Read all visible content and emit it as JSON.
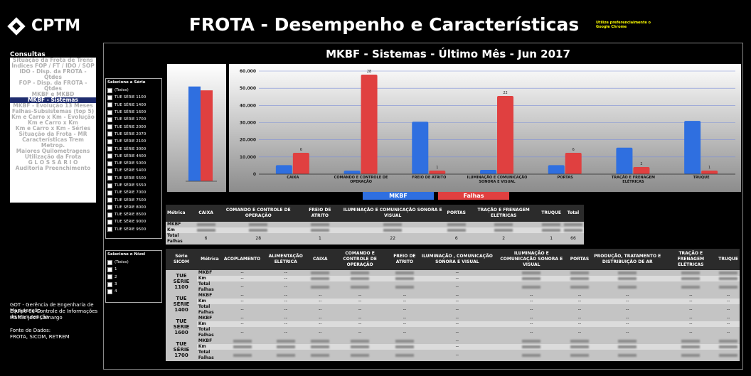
{
  "header": {
    "logo": "CPTM",
    "title": "FROTA - Desempenho e Características",
    "note": "Utilize preferencialmente o Google Chrome"
  },
  "menu": {
    "title": "Consultas",
    "selected": 5,
    "items": [
      "Situação da Frota de Trens",
      "Índices FOP / FT / IDO / SOP",
      "IDO - Disp. da FROTA - Qtdes",
      "FOP - Disp. da FROTA - Qtdes",
      "MKBF e MKBD",
      "MKBF - Sistemas",
      "MKBF - Evolução 13 Meses",
      "Falhas-Subsistemas (top 5)",
      "Km e Carro x Km - Evolução",
      "Km e Carro x Km",
      "Km e Carro x Km - Séries",
      "Situação da Frota - MR",
      "Características Trem Metrop.",
      "Maiores Quilometragens",
      "Utilização da Frota",
      "G L O S S Á R I O",
      "Auditoria Preenchimento"
    ]
  },
  "footer": [
    "GOT - Gerência de Engenharia de Manutenção",
    "Equipe de Controle de Informações da Manutenção",
    "Márcio José Camargo",
    "",
    "Fonte de Dados:",
    "FROTA, SICOM, RETREM"
  ],
  "subtitle": "MKBF - Sistemas - Último Mês -  Jun 2017",
  "series_filter": {
    "title": "Selecione a Série",
    "items": [
      "(Todos)",
      "TUE SÉRIE 1100",
      "TUE SÉRIE 1400",
      "TUE SÉRIE 1600",
      "TUE SÉRIE 1700",
      "TUE SÉRIE 2000",
      "TUE SÉRIE 2070",
      "TUE SÉRIE 2100",
      "TUE SÉRIE 3000",
      "TUE SÉRIE 4400",
      "TUE SÉRIE 5000",
      "TUE SÉRIE 5400",
      "TUE SÉRIE 5500",
      "TUE SÉRIE 5550",
      "TUE SÉRIE 7000",
      "TUE SÉRIE 7500",
      "TUE SÉRIE 8000",
      "TUE SÉRIE 8500",
      "TUE SÉRIE 9000",
      "TUE SÉRIE 9500"
    ]
  },
  "level_filter": {
    "title": "Selecione o Nível",
    "items": [
      "(Todos)",
      "1",
      "2",
      "3",
      "4"
    ]
  },
  "summary_chart": {
    "type": "bar",
    "ylim": [
      0,
      10000
    ],
    "y2lim": [
      0,
      80
    ],
    "series": [
      {
        "name": "MKBF",
        "color": "#2f6fe0",
        "values": [
          8600
        ]
      },
      {
        "name": "Falhas",
        "color": "#e04040",
        "values": [
          66
        ],
        "axis": "y2"
      }
    ]
  },
  "chart_data": {
    "type": "bar",
    "categories": [
      "CAIXA",
      "COMANDO E CONTROLE DE OPERAÇÃO",
      "FREIO DE ATRITO",
      "ILUMINAÇÃO E COMUNICAÇÃO SONORA E VISUAL",
      "PORTAS",
      "TRAÇÃO E FRENAGEM ELÉTRICAS",
      "TRUQUE"
    ],
    "series": [
      {
        "name": "MKBF",
        "color": "#2f6fe0",
        "values": [
          5200,
          2000,
          30500,
          2500,
          5200,
          15400,
          31000
        ]
      },
      {
        "name": "Falhas",
        "color": "#e04040",
        "axis": "y2",
        "values": [
          6,
          28,
          1,
          22,
          6,
          2,
          1
        ]
      }
    ],
    "ylim": [
      0,
      60000
    ],
    "yticks": [
      0,
      {
        "value": 10000,
        "label": "10.000"
      },
      {
        "value": 20000,
        "label": "20.000"
      },
      {
        "value": 30000,
        "label": "30.000"
      },
      {
        "value": 40000,
        "label": "40.000"
      },
      {
        "value": 50000,
        "label": "50.000"
      },
      {
        "value": 60000,
        "label": "60.000"
      }
    ],
    "y2lim": [
      0,
      29
    ],
    "grid": true,
    "legend": "bottom"
  },
  "metric_table": {
    "headers": [
      "Métrica",
      "CAIXA",
      "COMANDO E CONTROLE DE OPERAÇÃO",
      "FREIO DE ATRITO",
      "ILUMINAÇÃO E COMUNICAÇÃO SONORA E VISUAL",
      "PORTAS",
      "TRAÇÃO E FRENAGEM ELÉTRICAS",
      "TRUQUE",
      "Total"
    ],
    "rows": [
      [
        "MKBF",
        null,
        null,
        null,
        null,
        null,
        null,
        null,
        null
      ],
      [
        "Km",
        null,
        null,
        null,
        null,
        null,
        null,
        null,
        null
      ],
      [
        "Total Falhas",
        6,
        28,
        1,
        22,
        6,
        2,
        1,
        66
      ]
    ]
  },
  "detail_table": {
    "headers": [
      "Série SICOM",
      "Métrica",
      "ACOPLAMENTO",
      "ALIMENTAÇÃO ELÉTRICA",
      "CAIXA",
      "COMANDO E CONTROLE DE OPERAÇÃO",
      "FREIO DE ATRITO",
      "ILUMINAÇÃO , COMUNICAÇÃO SONORA E VISUAL",
      "ILUMINAÇÃO E COMUNICAÇÃO SONORA E VISUAL",
      "PORTAS",
      "PRODUÇÃO, TRATAMENTO E DISTRIBUIÇÃO DE AR",
      "TRAÇÃO E FRENAGEM ELÉTRICAS",
      "TRUQUE"
    ],
    "groups": [
      {
        "name": "TUE SÉRIE 1100",
        "rows": [
          [
            "MKBF",
            "--",
            "--",
            null,
            null,
            null,
            "--",
            null,
            null,
            null,
            null,
            null
          ],
          [
            "Km",
            "--",
            "--",
            null,
            null,
            null,
            "--",
            null,
            null,
            null,
            null,
            null
          ],
          [
            "Total Falhas",
            "--",
            "--",
            null,
            null,
            null,
            "--",
            null,
            null,
            null,
            null,
            null
          ]
        ]
      },
      {
        "name": "TUE SÉRIE 1400",
        "rows": [
          [
            "MKBF",
            "--",
            "--",
            "--",
            "--",
            "--",
            "--",
            "--",
            "--",
            "--",
            "--",
            "--"
          ],
          [
            "Km",
            "--",
            "--",
            "--",
            "--",
            "--",
            "--",
            "--",
            "--",
            "--",
            "--",
            "--"
          ],
          [
            "Total Falhas",
            "--",
            "--",
            "--",
            "--",
            "--",
            "--",
            "--",
            "--",
            "--",
            "--",
            "--"
          ]
        ]
      },
      {
        "name": "TUE SÉRIE 1600",
        "rows": [
          [
            "MKBF",
            "--",
            "--",
            "--",
            "--",
            "--",
            "--",
            "--",
            "--",
            "--",
            "--",
            "--"
          ],
          [
            "Km",
            "--",
            "--",
            "--",
            "--",
            "--",
            "--",
            "--",
            "--",
            "--",
            "--",
            "--"
          ],
          [
            "Total Falhas",
            "--",
            "--",
            "--",
            "--",
            "--",
            "--",
            "--",
            "--",
            "--",
            "--",
            "--"
          ]
        ]
      },
      {
        "name": "TUE SÉRIE 1700",
        "rows": [
          [
            "MKBF",
            null,
            null,
            null,
            null,
            null,
            "--",
            null,
            null,
            null,
            null,
            null
          ],
          [
            "Km",
            null,
            null,
            null,
            null,
            null,
            "--",
            null,
            null,
            null,
            null,
            null
          ],
          [
            "Total Falhas",
            null,
            null,
            null,
            null,
            null,
            "--",
            null,
            null,
            null,
            null,
            null
          ]
        ]
      }
    ]
  }
}
